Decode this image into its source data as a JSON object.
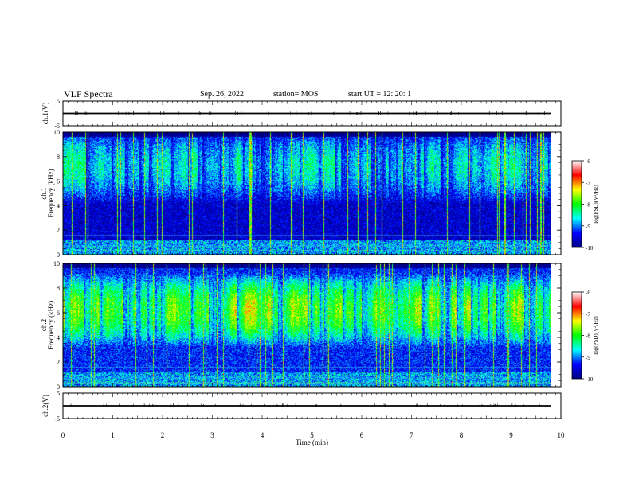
{
  "header": {
    "title": "VLF Spectra",
    "date": "Sep. 26, 2022",
    "station": "station= MOS",
    "start": "start  UT  =   12: 20: 1"
  },
  "chart_data": [
    {
      "type": "line",
      "panel": "ch1-waveform",
      "ylabel": "ch.1(V)",
      "ylim": [
        -5,
        5
      ],
      "y_ticks": [
        "5",
        "-5"
      ],
      "x": [
        0,
        9.8
      ],
      "values": [
        0,
        0
      ],
      "line_color": "#000000"
    },
    {
      "type": "heatmap",
      "panel": "ch1-spectrogram",
      "ylabel": "ch.1 Frequency (kHz)",
      "ylim": [
        0,
        10
      ],
      "y_ticks": [
        "0",
        "2",
        "4",
        "6",
        "8",
        "10"
      ],
      "xlim": [
        0,
        9.8
      ],
      "colorbar": {
        "label": "log(PSD)(V²/Hz)",
        "range": [
          -10,
          -6
        ],
        "ticks": [
          "-6",
          "-7",
          "-8",
          "-9",
          "-10"
        ]
      },
      "band_khz": [
        5,
        9.5
      ],
      "band_level": -8.1,
      "background_level": -9.6
    },
    {
      "type": "heatmap",
      "panel": "ch2-spectrogram",
      "ylabel": "ch.2 Frequency (kHz)",
      "ylim": [
        0,
        10
      ],
      "y_ticks": [
        "0",
        "2",
        "4",
        "6",
        "8",
        "10"
      ],
      "xlim": [
        0,
        9.8
      ],
      "colorbar": {
        "label": "log(PSD)(V²/Hz)",
        "range": [
          -10,
          -6
        ],
        "ticks": [
          "-6",
          "-7",
          "-8",
          "-9",
          "-10"
        ]
      },
      "band_khz": [
        4,
        8.5
      ],
      "band_level": -6.9,
      "background_level": -9.3
    },
    {
      "type": "line",
      "panel": "ch2-waveform",
      "ylabel": "ch.2(V)",
      "ylim": [
        -5,
        5
      ],
      "y_ticks": [
        "5",
        "-5"
      ],
      "x": [
        0,
        9.8
      ],
      "values": [
        0,
        0
      ],
      "line_color": "#000000"
    }
  ],
  "xaxis": {
    "label": "Time  (min)",
    "xlim": [
      0,
      10
    ],
    "ticks": [
      "0",
      "1",
      "2",
      "3",
      "4",
      "5",
      "6",
      "7",
      "8",
      "9",
      "10"
    ]
  },
  "colors": {
    "scale": [
      "#000080",
      "#0000ff",
      "#00ffff",
      "#00ff00",
      "#ffff00",
      "#ff0000",
      "#ffffff"
    ]
  }
}
